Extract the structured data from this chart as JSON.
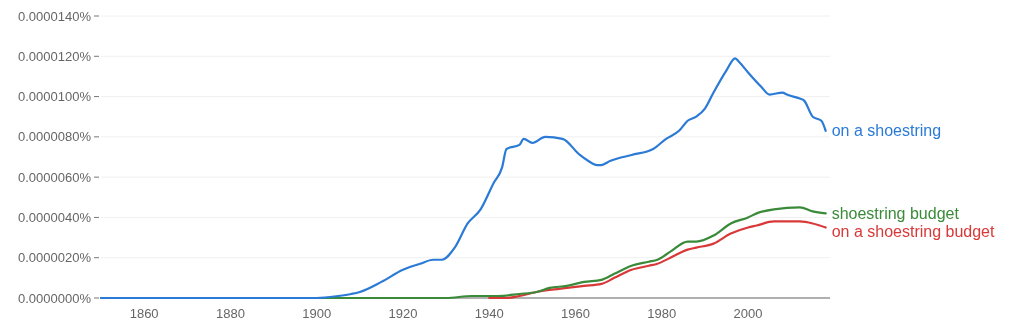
{
  "chart_data": {
    "type": "line",
    "xlim": [
      1850,
      2019
    ],
    "xticks": [
      1860,
      1880,
      1900,
      1920,
      1940,
      1960,
      1980,
      2000
    ],
    "ylim": [
      0,
      1.4e-05
    ],
    "yticks": [
      {
        "value": 0,
        "label": "0.0000000%"
      },
      {
        "value": 2e-06,
        "label": "0.0000020%"
      },
      {
        "value": 4e-06,
        "label": "0.0000040%"
      },
      {
        "value": 6e-06,
        "label": "0.0000060%"
      },
      {
        "value": 8e-06,
        "label": "0.0000080%"
      },
      {
        "value": 1e-05,
        "label": "0.0000100%"
      },
      {
        "value": 1.2e-05,
        "label": "0.0000120%"
      },
      {
        "value": 1.4e-05,
        "label": "0.0000140%"
      }
    ],
    "grid": "y",
    "legend": "right",
    "marker": "none",
    "line_style": "solid",
    "series": [
      {
        "name": "on a shoestring",
        "color": "#2a7ad6",
        "x": [
          1850,
          1865,
          1872,
          1880,
          1900,
          1905,
          1908,
          1910,
          1915,
          1920,
          1924,
          1927,
          1929,
          1932,
          1935,
          1938,
          1941,
          1943,
          1944,
          1947,
          1948,
          1950,
          1953,
          1957,
          1961,
          1963,
          1965,
          1966,
          1968,
          1973,
          1978,
          1981,
          1984,
          1986,
          1988,
          1990,
          1992,
          1995,
          1997,
          1998,
          2000,
          2003,
          2005,
          2008,
          2009,
          2012,
          2013,
          2015,
          2017,
          2018
        ],
        "values": [
          0,
          0,
          0,
          0,
          0,
          1e-07,
          2e-07,
          3e-07,
          8e-07,
          1.4e-06,
          1.7e-06,
          1.9e-06,
          1.9e-06,
          2.5e-06,
          3.7e-06,
          4.4e-06,
          5.7e-06,
          6.5e-06,
          7.4e-06,
          7.6e-06,
          7.9e-06,
          7.7e-06,
          8e-06,
          7.9e-06,
          7.1e-06,
          6.8e-06,
          6.6e-06,
          6.6e-06,
          6.8e-06,
          7.1e-06,
          7.4e-06,
          7.9e-06,
          8.3e-06,
          8.8e-06,
          9e-06,
          9.4e-06,
          1.02e-05,
          1.13e-05,
          1.19e-05,
          1.17e-05,
          1.12e-05,
          1.05e-05,
          1.01e-05,
          1.02e-05,
          1.01e-05,
          9.9e-06,
          9.8e-06,
          9e-06,
          8.8e-06,
          8.3e-06
        ]
      },
      {
        "name": "shoestring budget",
        "color": "#3a8a3a",
        "x": [
          1850,
          1930,
          1936,
          1942,
          1947,
          1951,
          1954,
          1958,
          1962,
          1966,
          1969,
          1973,
          1977,
          1979,
          1982,
          1986,
          1988,
          1992,
          1996,
          2000,
          2002,
          2006,
          2012,
          2015,
          2018
        ],
        "values": [
          0,
          0,
          1e-07,
          1e-07,
          2e-07,
          3e-07,
          5e-07,
          6e-07,
          8e-07,
          9e-07,
          1.2e-06,
          1.6e-06,
          1.8e-06,
          1.9e-06,
          2.3e-06,
          2.8e-06,
          2.8e-06,
          3.1e-06,
          3.7e-06,
          4e-06,
          4.2e-06,
          4.4e-06,
          4.5e-06,
          4.3e-06,
          4.2e-06
        ]
      },
      {
        "name": "on a shoestring budget",
        "color": "#d93838",
        "x": [
          1940,
          1944,
          1947,
          1951,
          1954,
          1958,
          1962,
          1966,
          1969,
          1973,
          1977,
          1979,
          1982,
          1986,
          1988,
          1992,
          1996,
          2000,
          2002,
          2006,
          2012,
          2015,
          2018
        ],
        "values": [
          0,
          0,
          1e-07,
          3e-07,
          4e-07,
          5e-07,
          6e-07,
          7e-07,
          1e-06,
          1.4e-06,
          1.6e-06,
          1.7e-06,
          2e-06,
          2.4e-06,
          2.5e-06,
          2.7e-06,
          3.2e-06,
          3.5e-06,
          3.6e-06,
          3.8e-06,
          3.8e-06,
          3.7e-06,
          3.5e-06
        ]
      }
    ]
  }
}
